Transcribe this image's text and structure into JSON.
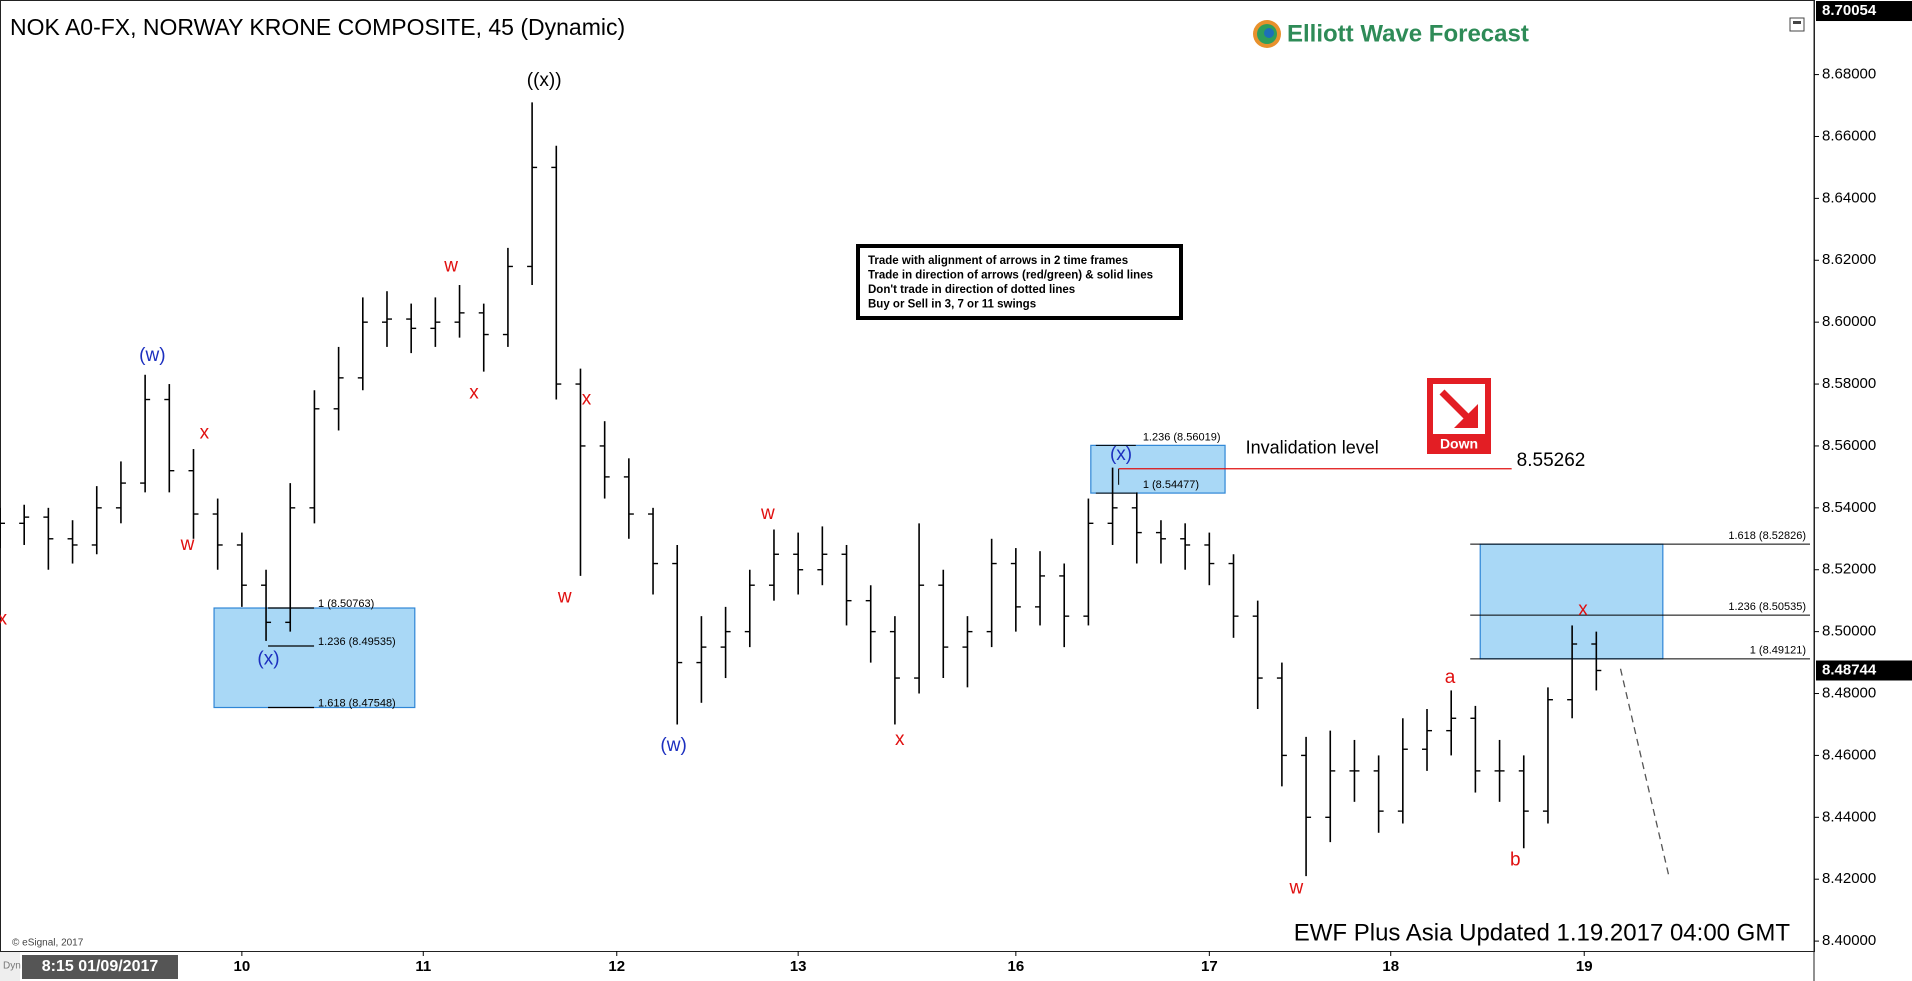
{
  "chart_data": {
    "type": "ohlc",
    "title": "NOK A0-FX, NORWAY KRONE COMPOSITE, 45 (Dynamic)",
    "brand": "Elliott Wave Forecast",
    "footer": "EWF Plus Asia Updated 1.19.2017 04:00 GMT",
    "copyright": "© eSignal, 2017",
    "mode_label": "Dyn",
    "cursor_time": "8:15 01/09/2017",
    "bar_color": "#000000",
    "x": [
      0,
      2,
      4,
      6,
      8,
      10,
      12,
      14,
      16,
      18,
      20,
      22,
      24,
      26,
      28,
      30,
      32,
      34,
      36,
      38,
      40,
      42,
      44,
      46,
      48,
      50,
      52,
      54,
      56,
      58,
      60,
      62,
      64,
      66,
      68,
      70,
      72,
      74,
      76,
      78,
      80,
      82,
      84,
      86,
      88,
      90,
      92,
      94,
      96,
      98,
      100,
      102,
      104,
      106,
      108,
      110,
      112,
      114,
      116,
      118,
      120,
      122,
      124,
      126,
      128,
      130,
      132
    ],
    "open": [
      8.532,
      8.535,
      8.537,
      8.53,
      8.528,
      8.54,
      8.548,
      8.575,
      8.552,
      8.538,
      8.528,
      8.515,
      8.503,
      8.54,
      8.572,
      8.582,
      8.6,
      8.601,
      8.598,
      8.6,
      8.603,
      8.596,
      8.618,
      8.65,
      8.58,
      8.56,
      8.55,
      8.538,
      8.522,
      8.49,
      8.495,
      8.5,
      8.515,
      8.525,
      8.52,
      8.525,
      8.51,
      8.5,
      8.485,
      8.515,
      8.495,
      8.5,
      8.522,
      8.508,
      8.518,
      8.505,
      8.535,
      8.54,
      8.532,
      8.53,
      8.528,
      8.522,
      8.505,
      8.485,
      8.46,
      8.44,
      8.455,
      8.455,
      8.442,
      8.462,
      8.468,
      8.472,
      8.455,
      8.455,
      8.442,
      8.478,
      8.496
    ],
    "high": [
      8.54,
      8.541,
      8.54,
      8.536,
      8.547,
      8.555,
      8.583,
      8.58,
      8.559,
      8.543,
      8.532,
      8.52,
      8.548,
      8.578,
      8.592,
      8.608,
      8.61,
      8.606,
      8.608,
      8.612,
      8.606,
      8.624,
      8.671,
      8.657,
      8.585,
      8.568,
      8.556,
      8.54,
      8.528,
      8.505,
      8.508,
      8.52,
      8.533,
      8.532,
      8.534,
      8.528,
      8.515,
      8.505,
      8.535,
      8.52,
      8.505,
      8.53,
      8.527,
      8.526,
      8.522,
      8.543,
      8.553,
      8.545,
      8.536,
      8.535,
      8.532,
      8.525,
      8.51,
      8.49,
      8.466,
      8.468,
      8.465,
      8.46,
      8.472,
      8.475,
      8.481,
      8.476,
      8.465,
      8.46,
      8.482,
      8.502,
      8.5
    ],
    "low": [
      8.527,
      8.528,
      8.52,
      8.522,
      8.525,
      8.535,
      8.545,
      8.545,
      8.53,
      8.52,
      8.508,
      8.497,
      8.5,
      8.535,
      8.565,
      8.578,
      8.592,
      8.59,
      8.592,
      8.595,
      8.584,
      8.592,
      8.612,
      8.575,
      8.518,
      8.543,
      8.53,
      8.512,
      8.47,
      8.477,
      8.485,
      8.495,
      8.51,
      8.512,
      8.515,
      8.502,
      8.49,
      8.47,
      8.48,
      8.485,
      8.482,
      8.495,
      8.5,
      8.502,
      8.495,
      8.502,
      8.528,
      8.522,
      8.522,
      8.52,
      8.515,
      8.498,
      8.475,
      8.45,
      8.421,
      8.432,
      8.445,
      8.435,
      8.438,
      8.455,
      8.46,
      8.448,
      8.445,
      8.43,
      8.438,
      8.472,
      8.481
    ],
    "close": [
      8.535,
      8.537,
      8.53,
      8.528,
      8.54,
      8.548,
      8.575,
      8.552,
      8.538,
      8.528,
      8.515,
      8.503,
      8.54,
      8.572,
      8.582,
      8.6,
      8.601,
      8.598,
      8.6,
      8.603,
      8.596,
      8.618,
      8.65,
      8.58,
      8.56,
      8.55,
      8.538,
      8.522,
      8.49,
      8.495,
      8.5,
      8.515,
      8.525,
      8.52,
      8.525,
      8.51,
      8.5,
      8.485,
      8.515,
      8.495,
      8.5,
      8.522,
      8.508,
      8.518,
      8.505,
      8.535,
      8.54,
      8.532,
      8.53,
      8.528,
      8.522,
      8.505,
      8.485,
      8.46,
      8.44,
      8.455,
      8.455,
      8.442,
      8.462,
      8.468,
      8.472,
      8.455,
      8.455,
      8.442,
      8.478,
      8.496,
      8.48744
    ],
    "xlim": [
      0,
      150
    ],
    "xticks": [
      {
        "value": 20,
        "label": "10"
      },
      {
        "value": 35,
        "label": "11"
      },
      {
        "value": 51,
        "label": "12"
      },
      {
        "value": 66,
        "label": "13"
      },
      {
        "value": 84,
        "label": "16"
      },
      {
        "value": 100,
        "label": "17"
      },
      {
        "value": 115,
        "label": "18"
      },
      {
        "value": 131,
        "label": "19"
      }
    ],
    "ylim": [
      8.3968,
      8.7041
    ],
    "yticks": [
      {
        "value": 8.4,
        "label": "8.40000"
      },
      {
        "value": 8.42,
        "label": "8.42000"
      },
      {
        "value": 8.44,
        "label": "8.44000"
      },
      {
        "value": 8.46,
        "label": "8.46000"
      },
      {
        "value": 8.48,
        "label": "8.48000"
      },
      {
        "value": 8.5,
        "label": "8.50000"
      },
      {
        "value": 8.52,
        "label": "8.52000"
      },
      {
        "value": 8.54,
        "label": "8.54000"
      },
      {
        "value": 8.56,
        "label": "8.56000"
      },
      {
        "value": 8.58,
        "label": "8.58000"
      },
      {
        "value": 8.6,
        "label": "8.60000"
      },
      {
        "value": 8.62,
        "label": "8.62000"
      },
      {
        "value": 8.64,
        "label": "8.64000"
      },
      {
        "value": 8.66,
        "label": "8.66000"
      },
      {
        "value": 8.68,
        "label": "8.68000"
      }
    ],
    "top_price": 8.70054,
    "last_price": 8.48744,
    "wave_labels": [
      {
        "text": "x",
        "x": 0.2,
        "y": 8.504,
        "color": "#e01010"
      },
      {
        "text": "(w)",
        "x": 12.6,
        "y": 8.589,
        "color": "#1c2fbf"
      },
      {
        "text": "x",
        "x": 16.9,
        "y": 8.564,
        "color": "#e01010"
      },
      {
        "text": "w",
        "x": 15.5,
        "y": 8.528,
        "color": "#e01010"
      },
      {
        "text": "(x)",
        "x": 22.2,
        "y": 8.491,
        "color": "#1c2fbf"
      },
      {
        "text": "w",
        "x": 37.3,
        "y": 8.618,
        "color": "#e01010"
      },
      {
        "text": "x",
        "x": 39.2,
        "y": 8.577,
        "color": "#e01010"
      },
      {
        "text": "((x))",
        "x": 45,
        "y": 8.678,
        "color": "#000000"
      },
      {
        "text": "x",
        "x": 48.5,
        "y": 8.575,
        "color": "#e01010"
      },
      {
        "text": "w",
        "x": 46.7,
        "y": 8.511,
        "color": "#e01010"
      },
      {
        "text": "(w)",
        "x": 55.7,
        "y": 8.463,
        "color": "#1c2fbf"
      },
      {
        "text": "w",
        "x": 63.5,
        "y": 8.538,
        "color": "#e01010"
      },
      {
        "text": "x",
        "x": 74.4,
        "y": 8.465,
        "color": "#e01010"
      },
      {
        "text": "(x)",
        "x": 92.7,
        "y": 8.557,
        "color": "#1c2fbf"
      },
      {
        "text": "w",
        "x": 107.2,
        "y": 8.417,
        "color": "#e01010"
      },
      {
        "text": "a",
        "x": 119.9,
        "y": 8.485,
        "color": "#e01010"
      },
      {
        "text": "b",
        "x": 125.3,
        "y": 8.426,
        "color": "#e01010"
      },
      {
        "text": "x",
        "x": 130.9,
        "y": 8.507,
        "color": "#e01010"
      }
    ],
    "fib_boxes": [
      {
        "x": [
          17.7,
          34.3
        ],
        "levels": [
          {
            "value": 8.50763,
            "label": "1 (8.50763)"
          },
          {
            "value": 8.49535,
            "label": "1.236 (8.49535)"
          },
          {
            "value": 8.47548,
            "label": "1.618 (8.47548)"
          }
        ]
      },
      {
        "x": [
          90.2,
          101.3
        ],
        "levels": [
          {
            "value": 8.56019,
            "label": "1.236 (8.56019)"
          },
          {
            "value": 8.54477,
            "label": "1 (8.54477)"
          }
        ]
      },
      {
        "x": [
          122.4,
          137.5
        ],
        "levels": [
          {
            "value": 8.52826,
            "label": "1.618 (8.52826)"
          },
          {
            "value": 8.50535,
            "label": "1.236 (8.50535)"
          },
          {
            "value": 8.49121,
            "label": "1 (8.49121)"
          }
        ]
      }
    ],
    "invalidation": {
      "label": "Invalidation level",
      "value": 8.55262,
      "x": [
        92.5,
        125
      ],
      "color": "#e01010"
    },
    "signal": {
      "label": "Down",
      "color": "#e31e24"
    },
    "projection": {
      "x": [
        134,
        138
      ],
      "y": [
        8.488,
        8.421
      ]
    },
    "notes": [
      "Trade with alignment of arrows in 2 time frames",
      "Trade in direction of arrows (red/green) & solid lines",
      "Don't trade in direction of dotted lines",
      "Buy or Sell in 3, 7 or 11 swings"
    ]
  }
}
